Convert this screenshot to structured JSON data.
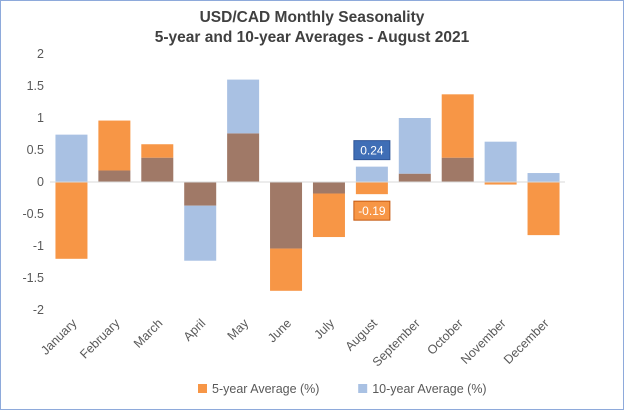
{
  "chart_data": {
    "type": "bar",
    "title": "USD/CAD Monthly Seasonality",
    "subtitle": "5-year and 10-year Averages - August 2021",
    "categories": [
      "January",
      "February",
      "March",
      "April",
      "May",
      "June",
      "July",
      "August",
      "September",
      "October",
      "November",
      "December"
    ],
    "series": [
      {
        "name": "5-year Average (%)",
        "color": "#f79646",
        "values": [
          -1.2,
          0.96,
          0.59,
          -0.37,
          0.76,
          -1.7,
          -0.86,
          -0.19,
          0.13,
          1.37,
          -0.04,
          -0.83
        ]
      },
      {
        "name": "10-year Average (%)",
        "color": "#a9c1e3",
        "values": [
          0.74,
          0.18,
          0.38,
          -1.23,
          1.6,
          -1.04,
          -0.18,
          0.24,
          1.0,
          0.38,
          0.63,
          0.14
        ]
      }
    ],
    "overlap_color": "#a07967",
    "ylim": [
      -2,
      2
    ],
    "yticks": [
      "2",
      "1.5",
      "1",
      "0.5",
      "0",
      "-0.5",
      "-1",
      "-1.5",
      "-2"
    ],
    "grid": false,
    "legend_position": "bottom",
    "annotations": [
      {
        "category": "August",
        "series": "10-year Average (%)",
        "text": "0.24",
        "fill": "#3f6eb6",
        "text_color": "#ffffff"
      },
      {
        "category": "August",
        "series": "5-year Average (%)",
        "text": "-0.19",
        "fill": "#f79646",
        "text_color": "#ffffff"
      }
    ]
  }
}
